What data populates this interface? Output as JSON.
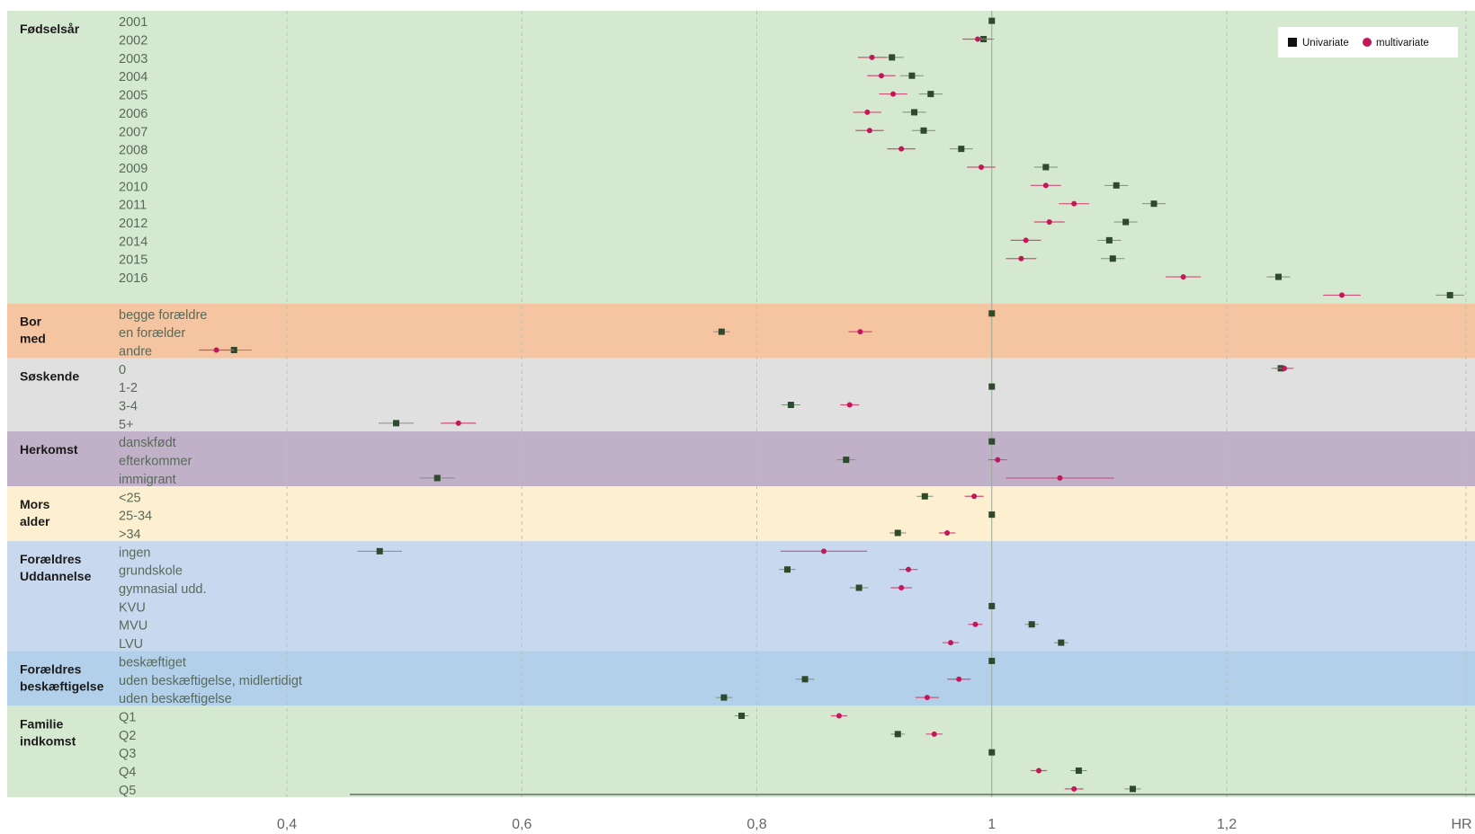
{
  "chart_data": {
    "type": "forest",
    "xlabel": "HR",
    "xlim": [
      0.2,
      1.41
    ],
    "xticks": [
      {
        "v": 0.4,
        "label": "0,4"
      },
      {
        "v": 0.6,
        "label": "0,6"
      },
      {
        "v": 0.8,
        "label": "0,8"
      },
      {
        "v": 1.0,
        "label": "1"
      },
      {
        "v": 1.2,
        "label": "1,2"
      }
    ],
    "reference_line": 1,
    "grid": true,
    "legend": {
      "position": "top-right",
      "entries": [
        {
          "name": "Univariate",
          "marker": "square",
          "color": "#2d4a2d"
        },
        {
          "name": "multivariate",
          "marker": "circle",
          "color": "#c2185b"
        }
      ]
    },
    "colors": {
      "univariate": "#2d4a2d",
      "multivariate": "#c2185b"
    },
    "groups": [
      {
        "name": "Fødselsår",
        "color": "#d5e8d0",
        "rows": [
          {
            "label": "2001",
            "uni": [
              1.0,
              1.0,
              1.0
            ],
            "multi": null
          },
          {
            "label": "2002",
            "uni": [
              0.993,
              0.985,
              1.002
            ],
            "multi": [
              0.988,
              0.975,
              1.0
            ]
          },
          {
            "label": "2003",
            "uni": [
              0.915,
              0.905,
              0.925
            ],
            "multi": [
              0.898,
              0.886,
              0.91
            ]
          },
          {
            "label": "2004",
            "uni": [
              0.932,
              0.922,
              0.942
            ],
            "multi": [
              0.906,
              0.894,
              0.918
            ]
          },
          {
            "label": "2005",
            "uni": [
              0.948,
              0.938,
              0.958
            ],
            "multi": [
              0.916,
              0.904,
              0.928
            ]
          },
          {
            "label": "2006",
            "uni": [
              0.934,
              0.924,
              0.944
            ],
            "multi": [
              0.894,
              0.882,
              0.906
            ]
          },
          {
            "label": "2007",
            "uni": [
              0.942,
              0.932,
              0.952
            ],
            "multi": [
              0.896,
              0.884,
              0.908
            ]
          },
          {
            "label": "2008",
            "uni": [
              0.974,
              0.964,
              0.984
            ],
            "multi": [
              0.923,
              0.911,
              0.935
            ]
          },
          {
            "label": "2009",
            "uni": [
              1.046,
              1.036,
              1.056
            ],
            "multi": [
              0.991,
              0.979,
              1.003
            ]
          },
          {
            "label": "2010",
            "uni": [
              1.106,
              1.096,
              1.116
            ],
            "multi": [
              1.046,
              1.033,
              1.059
            ]
          },
          {
            "label": "2011",
            "uni": [
              1.138,
              1.128,
              1.148
            ],
            "multi": [
              1.07,
              1.057,
              1.083
            ]
          },
          {
            "label": "2012",
            "uni": [
              1.114,
              1.104,
              1.124
            ],
            "multi": [
              1.049,
              1.036,
              1.062
            ]
          },
          {
            "label": "2014",
            "uni": [
              1.1,
              1.09,
              1.11
            ],
            "multi": [
              1.029,
              1.016,
              1.042
            ]
          },
          {
            "label": "2015",
            "uni": [
              1.103,
              1.093,
              1.113
            ],
            "multi": [
              1.025,
              1.012,
              1.038
            ]
          },
          {
            "label": "2016",
            "uni": [
              1.244,
              1.234,
              1.254
            ],
            "multi": [
              1.163,
              1.148,
              1.178
            ]
          },
          {
            "label": "",
            "uni": [
              1.39,
              1.378,
              1.402
            ],
            "multi": [
              1.298,
              1.282,
              1.314
            ]
          }
        ]
      },
      {
        "name": "Bor med",
        "color": "#f5c4a0",
        "rows": [
          {
            "label": "begge forældre",
            "uni": [
              1.0,
              1.0,
              1.0
            ],
            "multi": null
          },
          {
            "label": "en forælder",
            "uni": [
              0.77,
              0.763,
              0.777
            ],
            "multi": [
              0.888,
              0.878,
              0.898
            ]
          },
          {
            "label": "andre",
            "uni": [
              0.355,
              0.34,
              0.37
            ],
            "multi": [
              0.34,
              0.325,
              0.355
            ]
          }
        ]
      },
      {
        "name": "Søskende",
        "color": "#e0e0e0",
        "rows": [
          {
            "label": "0",
            "uni": [
              1.246,
              1.238,
              1.254
            ],
            "multi": [
              1.249,
              1.241,
              1.257
            ]
          },
          {
            "label": "1-2",
            "uni": [
              1.0,
              1.0,
              1.0
            ],
            "multi": null
          },
          {
            "label": "3-4",
            "uni": [
              0.829,
              0.821,
              0.837
            ],
            "multi": [
              0.879,
              0.871,
              0.887
            ]
          },
          {
            "label": "5+",
            "uni": [
              0.493,
              0.478,
              0.508
            ],
            "multi": [
              0.546,
              0.531,
              0.561
            ]
          }
        ]
      },
      {
        "name": "Herkomst",
        "color": "#c0b0c8",
        "rows": [
          {
            "label": "danskfødt",
            "uni": [
              1.0,
              1.0,
              1.0
            ],
            "multi": null
          },
          {
            "label": "efterkommer",
            "uni": [
              0.876,
              0.868,
              0.884
            ],
            "multi": [
              1.005,
              0.997,
              1.013
            ]
          },
          {
            "label": "immigrant",
            "uni": [
              0.528,
              0.513,
              0.543
            ],
            "multi": [
              1.058,
              1.012,
              1.104
            ]
          }
        ]
      },
      {
        "name": "Mors alder",
        "color": "#fdf0d0",
        "rows": [
          {
            "label": "<25",
            "uni": [
              0.943,
              0.936,
              0.95
            ],
            "multi": [
              0.985,
              0.977,
              0.993
            ]
          },
          {
            "label": "25-34",
            "uni": [
              1.0,
              1.0,
              1.0
            ],
            "multi": null
          },
          {
            "label": ">34",
            "uni": [
              0.92,
              0.913,
              0.927
            ],
            "multi": [
              0.962,
              0.955,
              0.969
            ]
          }
        ]
      },
      {
        "name": "Forældres Uddannelse",
        "color": "#c8d8ee",
        "rows": [
          {
            "label": "ingen",
            "uni": [
              0.479,
              0.46,
              0.498
            ],
            "multi": [
              0.857,
              0.82,
              0.894
            ]
          },
          {
            "label": "grundskole",
            "uni": [
              0.826,
              0.819,
              0.833
            ],
            "multi": [
              0.929,
              0.921,
              0.937
            ]
          },
          {
            "label": "gymnasial udd.",
            "uni": [
              0.887,
              0.879,
              0.895
            ],
            "multi": [
              0.923,
              0.914,
              0.932
            ]
          },
          {
            "label": "KVU",
            "uni": [
              1.0,
              1.0,
              1.0
            ],
            "multi": null
          },
          {
            "label": "MVU",
            "uni": [
              1.034,
              1.028,
              1.04
            ],
            "multi": [
              0.986,
              0.98,
              0.992
            ]
          },
          {
            "label": "LVU",
            "uni": [
              1.059,
              1.053,
              1.065
            ],
            "multi": [
              0.965,
              0.958,
              0.972
            ]
          }
        ]
      },
      {
        "name": "Forældres beskæftigelse",
        "color": "#b3d0ea",
        "rows": [
          {
            "label": "beskæftiget",
            "uni": [
              1.0,
              1.0,
              1.0
            ],
            "multi": null
          },
          {
            "label": "uden beskæftigelse, midlertidigt",
            "uni": [
              0.841,
              0.833,
              0.849
            ],
            "multi": [
              0.972,
              0.962,
              0.982
            ]
          },
          {
            "label": "uden beskæftigelse",
            "uni": [
              0.772,
              0.765,
              0.779
            ],
            "multi": [
              0.945,
              0.935,
              0.955
            ]
          }
        ]
      },
      {
        "name": "Familie indkomst",
        "color": "#d5e8d0",
        "rows": [
          {
            "label": "Q1",
            "uni": [
              0.787,
              0.781,
              0.793
            ],
            "multi": [
              0.87,
              0.863,
              0.877
            ]
          },
          {
            "label": "Q2",
            "uni": [
              0.92,
              0.914,
              0.926
            ],
            "multi": [
              0.951,
              0.944,
              0.958
            ]
          },
          {
            "label": "Q3",
            "uni": [
              1.0,
              1.0,
              1.0
            ],
            "multi": null
          },
          {
            "label": "Q4",
            "uni": [
              1.074,
              1.067,
              1.081
            ],
            "multi": [
              1.04,
              1.033,
              1.047
            ]
          },
          {
            "label": "Q5",
            "uni": [
              1.12,
              1.113,
              1.127
            ],
            "multi": [
              1.07,
              1.062,
              1.078
            ]
          }
        ]
      }
    ]
  }
}
